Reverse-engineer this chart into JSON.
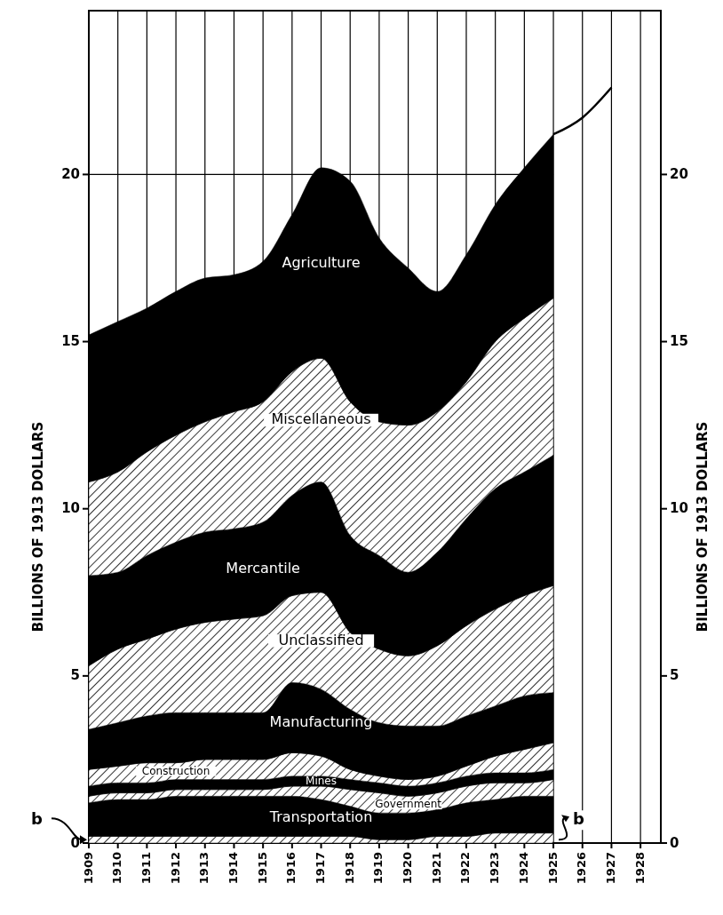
{
  "chart_data": {
    "type": "area",
    "stacked": true,
    "ylabel": "BILLIONS OF 1913 DOLLARS",
    "y2label": "BILLIONS OF 1913 DOLLARS",
    "x": [
      1909,
      1910,
      1911,
      1912,
      1913,
      1914,
      1915,
      1916,
      1917,
      1918,
      1919,
      1920,
      1921,
      1922,
      1923,
      1924,
      1925
    ],
    "series": [
      {
        "color": "#000000",
        "values": [
          0.2,
          0.2,
          0.2,
          0.2,
          0.2,
          0.2,
          0.2,
          0.2,
          0.2,
          0.2,
          0.1,
          0.1,
          0.2,
          0.2,
          0.3,
          0.3,
          0.3
        ]
      },
      {
        "name": "Transportation",
        "color": "#000000",
        "values": [
          1.0,
          1.1,
          1.1,
          1.2,
          1.2,
          1.2,
          1.2,
          1.2,
          1.1,
          0.9,
          0.8,
          0.8,
          0.8,
          1.0,
          1.0,
          1.1,
          1.1
        ]
      },
      {
        "name": "Government",
        "color": "#000000",
        "values": [
          0.2,
          0.2,
          0.2,
          0.2,
          0.2,
          0.2,
          0.2,
          0.3,
          0.4,
          0.5,
          0.6,
          0.5,
          0.5,
          0.5,
          0.5,
          0.4,
          0.5
        ]
      },
      {
        "name": "Mines",
        "color": "#000000",
        "values": [
          0.3,
          0.3,
          0.3,
          0.3,
          0.3,
          0.3,
          0.3,
          0.3,
          0.3,
          0.3,
          0.3,
          0.3,
          0.3,
          0.3,
          0.3,
          0.3,
          0.3
        ]
      },
      {
        "name": "Construction",
        "color": "#000000",
        "values": [
          0.5,
          0.5,
          0.6,
          0.5,
          0.6,
          0.6,
          0.6,
          0.7,
          0.6,
          0.3,
          0.2,
          0.2,
          0.2,
          0.3,
          0.5,
          0.7,
          0.8
        ]
      },
      {
        "name": "Manufacturing",
        "color": "#000000",
        "values": [
          1.2,
          1.3,
          1.4,
          1.5,
          1.4,
          1.4,
          1.4,
          2.1,
          2.0,
          1.8,
          1.6,
          1.6,
          1.5,
          1.5,
          1.5,
          1.6,
          1.5
        ]
      },
      {
        "name": "Unclassified",
        "color": "#000000",
        "values": [
          1.9,
          2.2,
          2.3,
          2.5,
          2.7,
          2.8,
          2.9,
          2.6,
          2.9,
          2.3,
          2.2,
          2.1,
          2.4,
          2.7,
          2.9,
          3.0,
          3.2
        ]
      },
      {
        "name": "Mercantile",
        "color": "#000000",
        "values": [
          2.7,
          2.3,
          2.5,
          2.6,
          2.7,
          2.7,
          2.8,
          3.0,
          3.3,
          2.9,
          2.8,
          2.5,
          2.8,
          3.2,
          3.6,
          3.7,
          3.9
        ]
      },
      {
        "name": "Miscellaneous",
        "color": "#000000",
        "values": [
          2.8,
          3.0,
          3.1,
          3.2,
          3.3,
          3.5,
          3.6,
          3.7,
          3.7,
          4.0,
          4.0,
          4.4,
          4.2,
          4.1,
          4.4,
          4.6,
          4.7
        ]
      },
      {
        "name": "Agriculture",
        "color": "#000000",
        "values": [
          4.4,
          4.5,
          4.3,
          4.3,
          4.3,
          4.1,
          4.2,
          4.7,
          5.7,
          6.6,
          5.5,
          4.7,
          3.6,
          3.8,
          4.1,
          4.5,
          4.9
        ]
      },
      {
        "type": "line",
        "color": "#000000",
        "x": [
          1925,
          1926,
          1927
        ],
        "values": [
          21.2,
          21.7,
          22.6
        ]
      }
    ],
    "xlim": [
      1909,
      1928.7
    ],
    "xticks": [
      1909,
      1910,
      1911,
      1912,
      1913,
      1914,
      1915,
      1916,
      1917,
      1918,
      1919,
      1920,
      1921,
      1922,
      1923,
      1924,
      1925,
      1926,
      1927,
      1928
    ],
    "ylim": [
      0,
      24.9
    ],
    "yticks": [
      0,
      5,
      10,
      15,
      20
    ],
    "y2lim": [
      0,
      24.9
    ],
    "y2ticks": [
      0,
      5,
      10,
      15,
      20
    ],
    "grid": "x",
    "ref_lines": [
      {
        "axis": "y",
        "value": 20
      }
    ],
    "annotations": [
      {
        "text": "b",
        "x": 1909,
        "y": 0.1
      },
      {
        "text": "b",
        "x": 1925,
        "y": 0.1
      }
    ]
  }
}
